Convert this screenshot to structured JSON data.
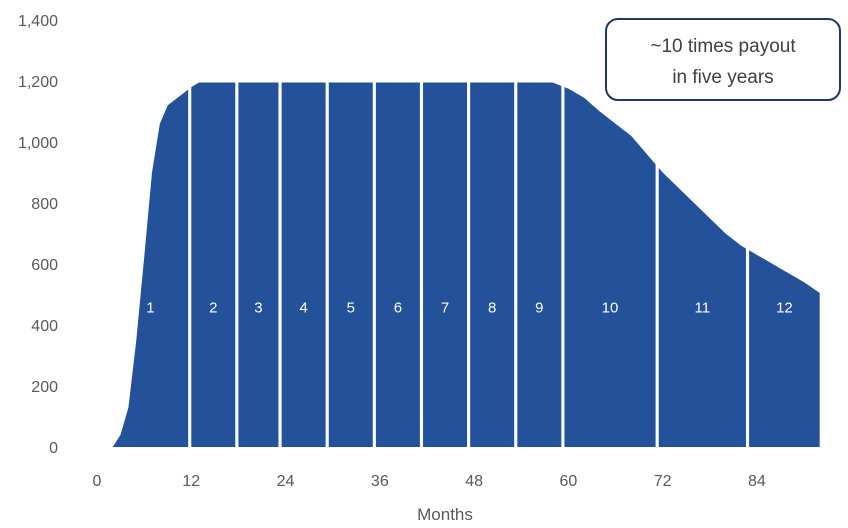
{
  "chart_data": {
    "type": "area",
    "title": "",
    "xlabel": "Months",
    "ylabel": "",
    "xlim": [
      0,
      93
    ],
    "ylim": [
      0,
      1400
    ],
    "x_ticks": [
      0,
      12,
      24,
      36,
      48,
      60,
      72,
      84
    ],
    "x_tick_labels": [
      "0",
      "12",
      "24",
      "36",
      "48",
      "60",
      "72",
      "84"
    ],
    "y_ticks": [
      0,
      200,
      400,
      600,
      800,
      1000,
      1200,
      1400
    ],
    "y_tick_labels": [
      "0",
      "200",
      "400",
      "600",
      "800",
      "1,000",
      "1,200",
      "1,400"
    ],
    "grid": false,
    "fill_color": "#23529a",
    "series": [
      {
        "x": [
          2,
          3,
          4,
          5,
          6,
          7,
          8,
          9,
          10,
          11,
          12,
          13,
          14,
          20,
          26,
          32,
          38,
          44,
          50,
          56,
          58,
          60,
          62,
          64,
          66,
          68,
          70,
          72,
          74,
          76,
          78,
          80,
          82,
          84,
          86,
          88,
          90,
          92
        ],
        "values": [
          0,
          40,
          130,
          350,
          620,
          900,
          1060,
          1120,
          1140,
          1160,
          1180,
          1195,
          1195,
          1195,
          1195,
          1195,
          1195,
          1195,
          1195,
          1195,
          1195,
          1175,
          1145,
          1100,
          1060,
          1020,
          960,
          900,
          850,
          800,
          750,
          700,
          660,
          630,
          600,
          570,
          540,
          505
        ]
      }
    ],
    "segments": [
      {
        "label": "1",
        "x_start": 2,
        "x_end": 11.6
      },
      {
        "label": "2",
        "x_start": 12,
        "x_end": 17.6
      },
      {
        "label": "3",
        "x_start": 18,
        "x_end": 23.1
      },
      {
        "label": "4",
        "x_start": 23.5,
        "x_end": 29.1
      },
      {
        "label": "5",
        "x_start": 29.5,
        "x_end": 35.1
      },
      {
        "label": "6",
        "x_start": 35.5,
        "x_end": 41.1
      },
      {
        "label": "7",
        "x_start": 41.5,
        "x_end": 47.1
      },
      {
        "label": "8",
        "x_start": 47.5,
        "x_end": 53.1
      },
      {
        "label": "9",
        "x_start": 53.5,
        "x_end": 59.1
      },
      {
        "label": "10",
        "x_start": 59.5,
        "x_end": 71.1
      },
      {
        "label": "11",
        "x_start": 71.5,
        "x_end": 82.6
      },
      {
        "label": "12",
        "x_start": 83,
        "x_end": 92
      }
    ],
    "segment_label_y": 460,
    "annotations": [
      {
        "lines": [
          "~10 times payout",
          "in five years"
        ],
        "position": "top-right"
      }
    ]
  }
}
